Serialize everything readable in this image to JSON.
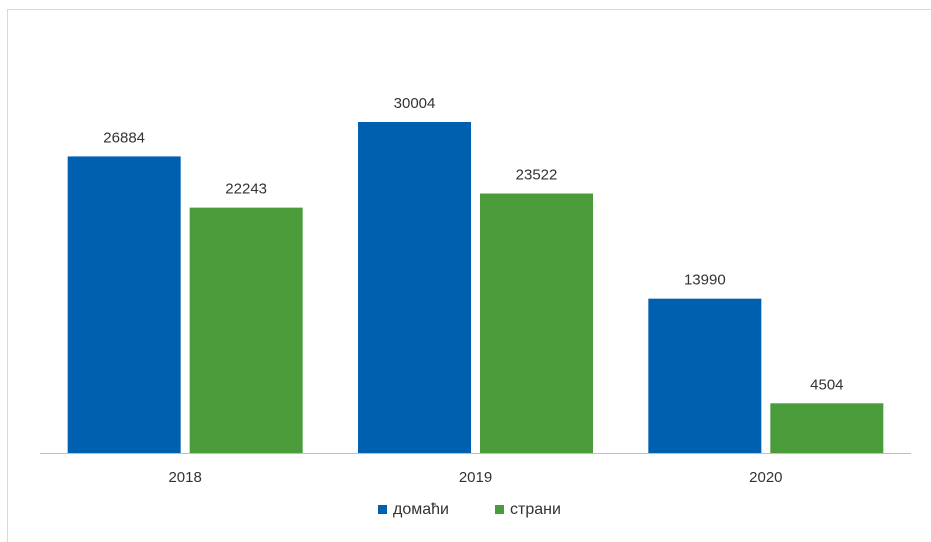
{
  "chart_data": {
    "type": "bar",
    "categories": [
      "2018",
      "2019",
      "2020"
    ],
    "series": [
      {
        "name": "домаћи",
        "values": [
          26884,
          30004,
          13990
        ],
        "color": "#0060b0"
      },
      {
        "name": "страни",
        "values": [
          22243,
          23522,
          4504
        ],
        "color": "#4a9c3a"
      }
    ],
    "ylim": [
      0,
      32500
    ],
    "legend_position": "bottom",
    "grid": false
  }
}
